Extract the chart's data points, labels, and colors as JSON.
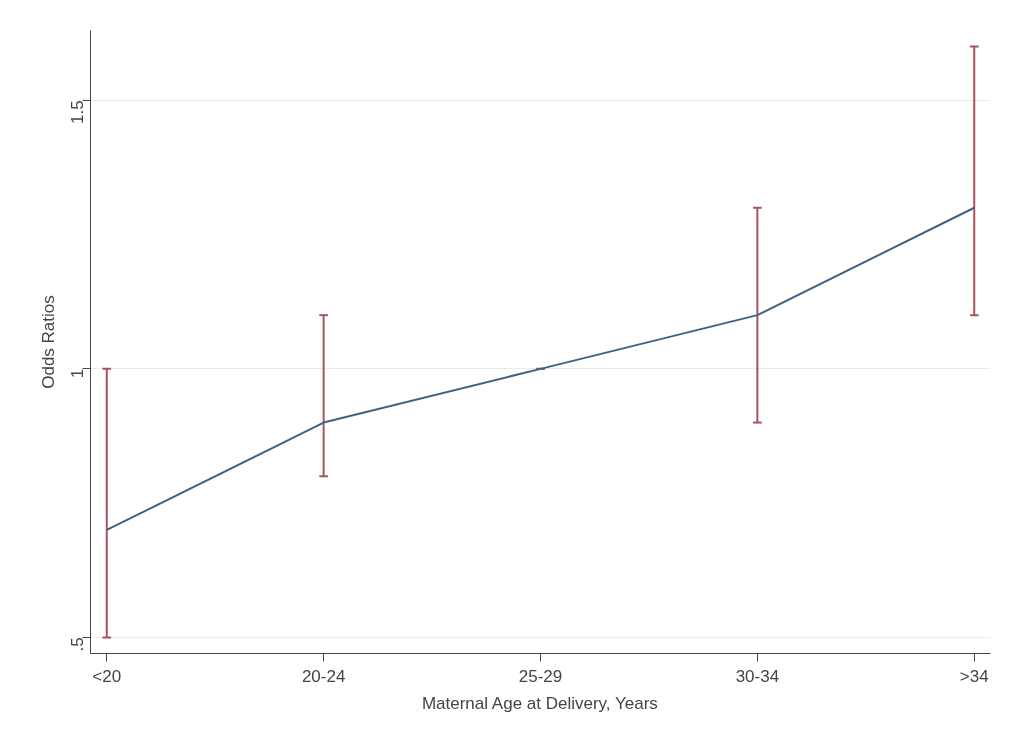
{
  "chart_data": {
    "type": "line",
    "xlabel": "Maternal Age at Delivery, Years",
    "ylabel": "Odds Ratios",
    "categories": [
      "<20",
      "20-24",
      "25-29",
      "30-34",
      ">34"
    ],
    "series": [
      {
        "color": "#3f6284",
        "values": [
          0.7,
          0.9,
          1.0,
          1.1,
          1.3
        ],
        "errors": [
          [
            0.5,
            1.0
          ],
          [
            0.8,
            1.1
          ],
          [
            1.0,
            1.0
          ],
          [
            0.9,
            1.3
          ],
          [
            1.1,
            1.6
          ]
        ]
      }
    ],
    "ylim": [
      0.47,
      1.63
    ],
    "yticks": [
      {
        "value": 0.5,
        "label": ".5"
      },
      1,
      1.5
    ],
    "grid": "y",
    "marker": "none",
    "line_style": "solid"
  }
}
